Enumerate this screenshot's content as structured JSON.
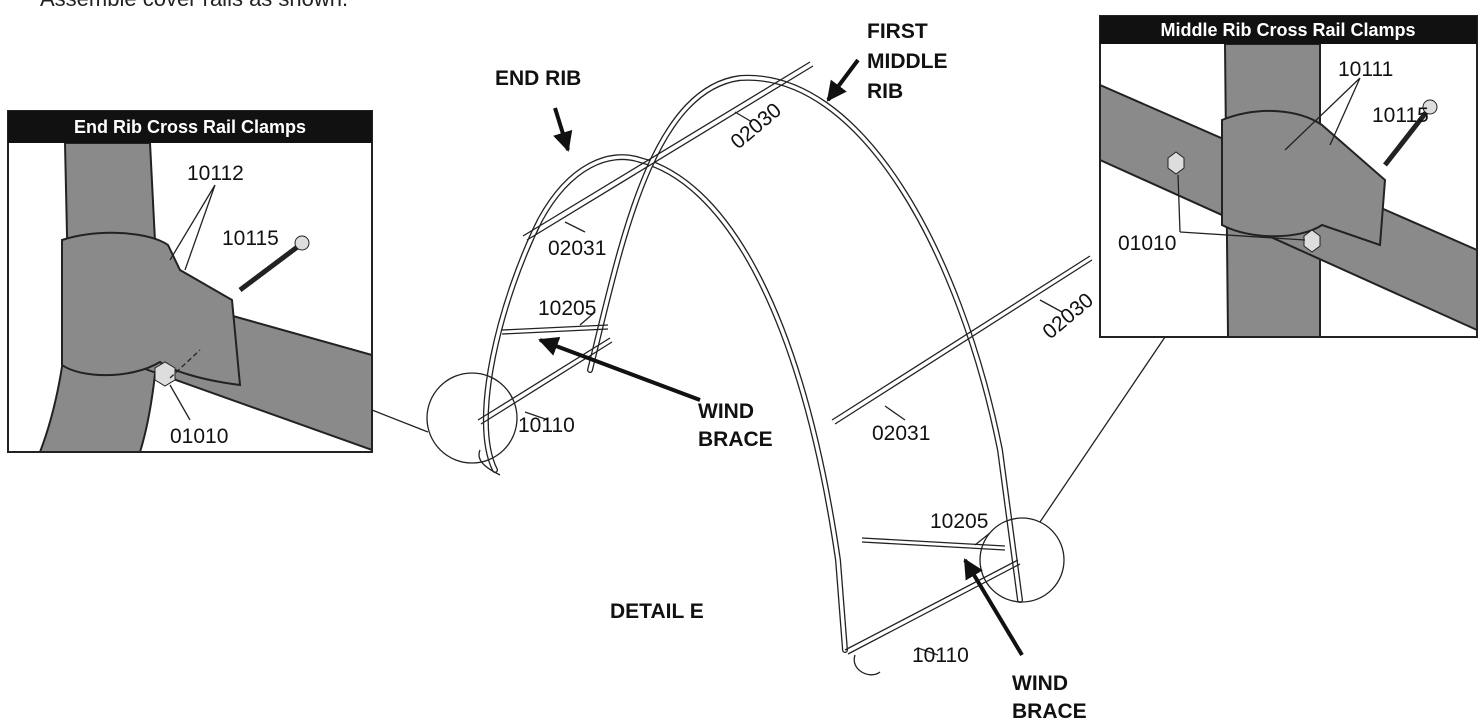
{
  "instruction": "Assemble cover rails as shown.",
  "insets": [
    {
      "title": "End Rib Cross Rail Clamps",
      "parts": [
        "10112",
        "10115",
        "01010"
      ]
    },
    {
      "title": "Middle Rib Cross Rail Clamps",
      "parts": [
        "10111",
        "10115",
        "01010"
      ]
    }
  ],
  "callouts": {
    "end_rib": "END RIB",
    "first_middle_rib": [
      "FIRST",
      "MIDDLE",
      "RIB"
    ],
    "wind_brace_left": [
      "WIND",
      "BRACE"
    ],
    "wind_brace_right": [
      "WIND",
      "BRACE"
    ]
  },
  "part_labels": [
    "02030",
    "02031",
    "10205",
    "10110",
    "02030",
    "02031",
    "10205",
    "10110"
  ],
  "detail_label": "DETAIL E"
}
